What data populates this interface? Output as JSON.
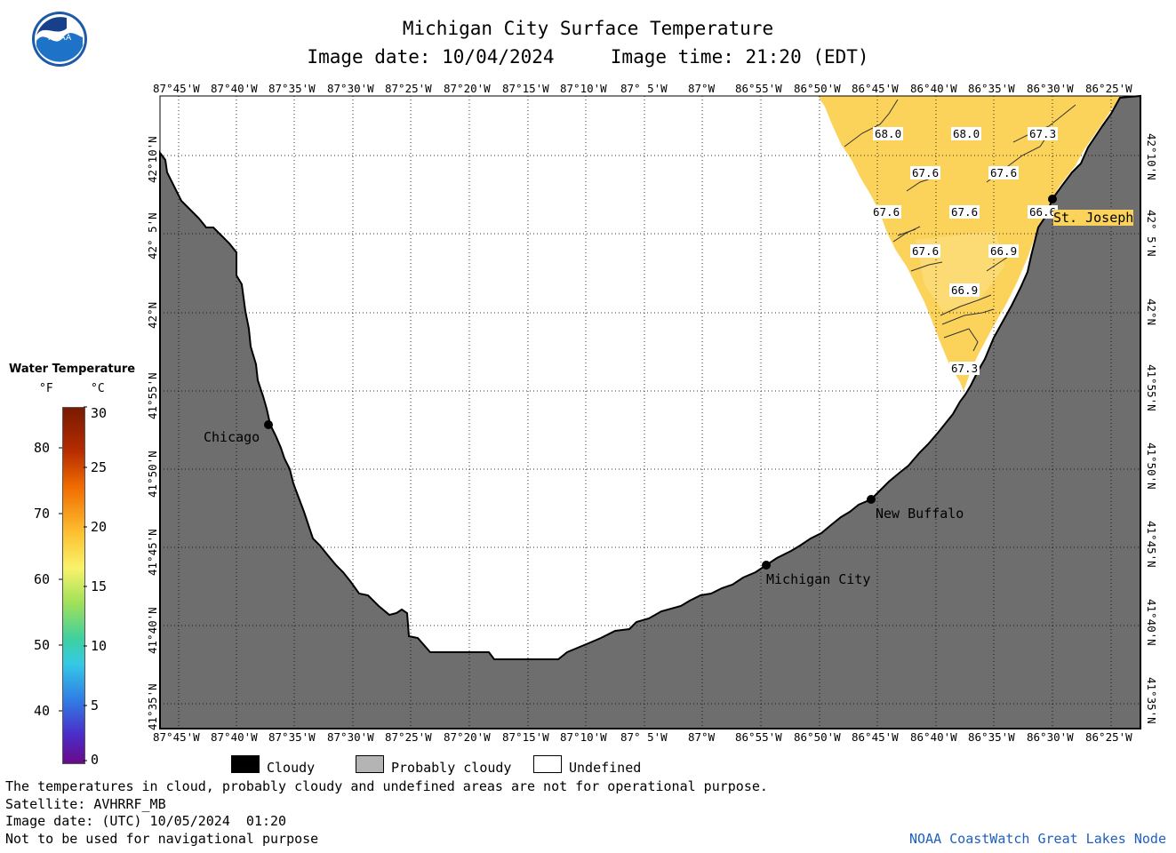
{
  "header": {
    "title": "Michigan City Surface Temperature",
    "subtitle": "Image date: 10/04/2024     Image time: 21:20 (EDT)"
  },
  "logo": {
    "text": "NOAA",
    "icon": "noaa-logo-icon"
  },
  "axes": {
    "lon_labels": [
      "87°45'W",
      "87°40'W",
      "87°35'W",
      "87°30'W",
      "87°25'W",
      "87°20'W",
      "87°15'W",
      "87°10'W",
      "87° 5'W",
      "87°W",
      "86°55'W",
      "86°50'W",
      "86°45'W",
      "86°40'W",
      "86°35'W",
      "86°30'W",
      "86°25'W"
    ],
    "lat_labels": [
      "42°10'N",
      "42° 5'N",
      "42°N",
      "41°55'N",
      "41°50'N",
      "41°45'N",
      "41°40'N",
      "41°35'N"
    ]
  },
  "places": {
    "chicago": "Chicago",
    "michigan_city": "Michigan City",
    "new_buffalo": "New Buffalo",
    "st_joseph": "St. Joseph"
  },
  "contour_labels": [
    "68.0",
    "68.0",
    "67.3",
    "67.6",
    "67.6",
    "67.6",
    "67.6",
    "66.6",
    "67.6",
    "66.9",
    "66.9",
    "67.3"
  ],
  "colorbar": {
    "title": "Water Temperature",
    "unit_f": "°F",
    "unit_c": "°C",
    "f_ticks": [
      "80",
      "70",
      "60",
      "50",
      "40"
    ],
    "c_ticks": [
      "30",
      "25",
      "20",
      "15",
      "10",
      "5",
      "0"
    ]
  },
  "legend": {
    "cloudy": "Cloudy",
    "probably_cloudy": "Probably cloudy",
    "undefined": "Undefined"
  },
  "footer": {
    "note": "The temperatures in cloud, probably cloudy and undefined areas are not for operational purpose.",
    "satellite": "Satellite: AVHRRF_MB",
    "utc_date": "Image date: (UTC) 10/05/2024  01:20",
    "nav_note": "Not to be used for navigational purpose",
    "credit": "NOAA CoastWatch Great Lakes Node"
  },
  "colors": {
    "land": "#6e6e6e",
    "water_warm": "#fbd35a",
    "undefined": "#ffffff",
    "credit": "#1f5fbf"
  }
}
